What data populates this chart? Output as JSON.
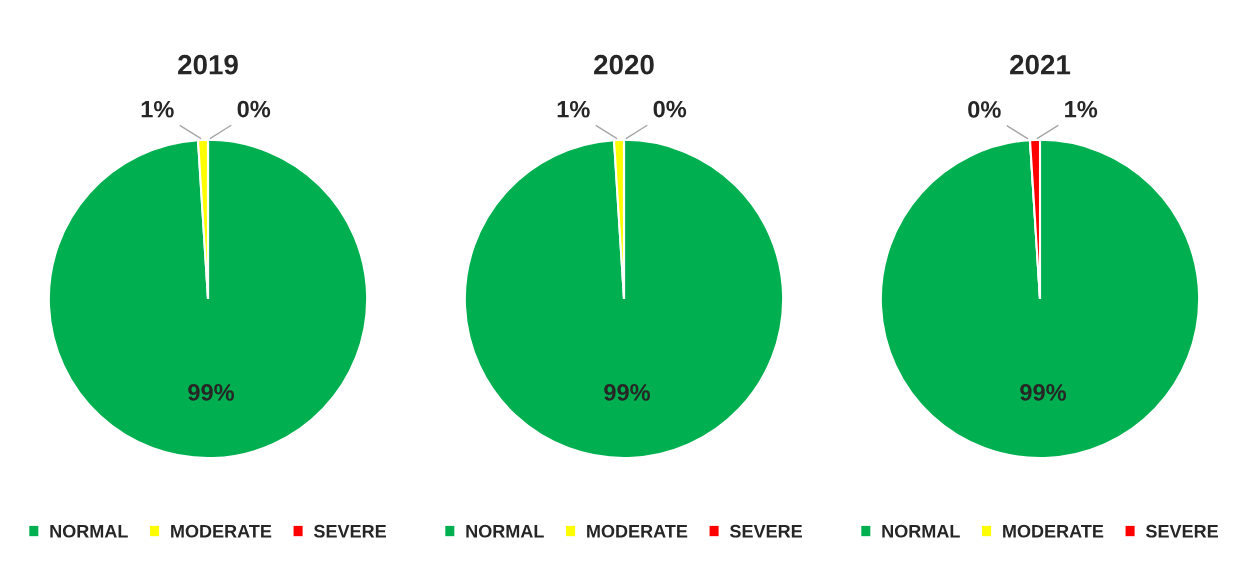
{
  "chart_data": [
    {
      "type": "pie",
      "title": "2019",
      "categories": [
        "NORMAL",
        "MODERATE",
        "SEVERE"
      ],
      "values": [
        99,
        1,
        0
      ],
      "colors": [
        "#00b050",
        "#ffff00",
        "#ff0000"
      ],
      "value_labels": [
        "99%",
        "1%",
        "0%"
      ],
      "legend": "bottom"
    },
    {
      "type": "pie",
      "title": "2020",
      "categories": [
        "NORMAL",
        "MODERATE",
        "SEVERE"
      ],
      "values": [
        99,
        1,
        0
      ],
      "colors": [
        "#00b050",
        "#ffff00",
        "#ff0000"
      ],
      "value_labels": [
        "99%",
        "1%",
        "0%"
      ],
      "legend": "bottom"
    },
    {
      "type": "pie",
      "title": "2021",
      "categories": [
        "NORMAL",
        "MODERATE",
        "SEVERE"
      ],
      "values": [
        99,
        0,
        1
      ],
      "colors": [
        "#00b050",
        "#ffff00",
        "#ff0000"
      ],
      "value_labels": [
        "99%",
        "0%",
        "1%"
      ],
      "legend": "bottom"
    }
  ]
}
